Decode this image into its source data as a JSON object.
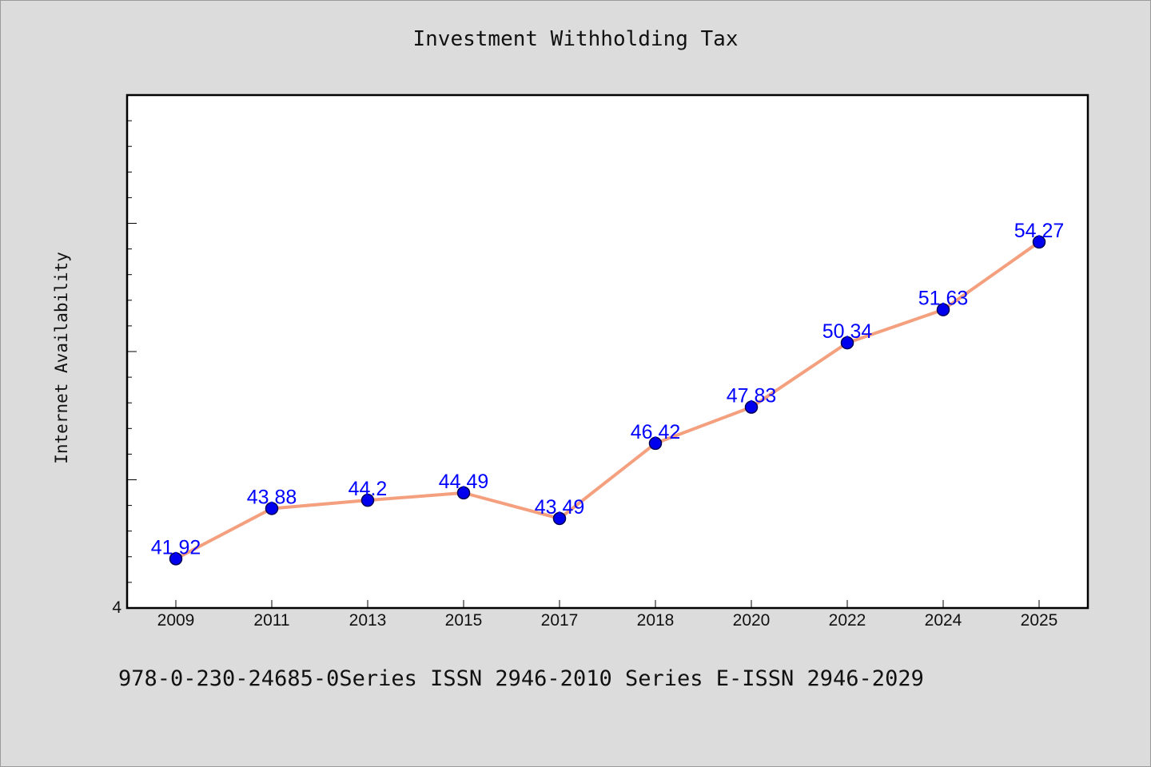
{
  "chart_data": {
    "type": "line",
    "title": "Investment Withholding Tax",
    "ylabel": "Internet Availability",
    "xlabel": "",
    "y_tick_labels": [
      "4"
    ],
    "categories": [
      "2009",
      "2011",
      "2013",
      "2015",
      "2017",
      "2018",
      "2020",
      "2022",
      "2024",
      "2025"
    ],
    "series": [
      {
        "values": [
          41.92,
          43.88,
          44.2,
          44.49,
          43.49,
          46.42,
          47.83,
          50.34,
          51.63,
          54.27
        ],
        "labels": [
          "41.92",
          "43.88",
          "44.2",
          "44.49",
          "43.49",
          "46.42",
          "47.83",
          "50.34",
          "51.63",
          "54.27"
        ]
      }
    ],
    "ylim": [
      40,
      60
    ],
    "grid": false,
    "legend": "none",
    "colors": {
      "line": "#f4a07e",
      "marker": "#0000ee",
      "marker_edge": "#000055",
      "data_label": "#0000ff",
      "plot_background": "#ffffff",
      "figure_background": "#dcdcdc"
    }
  },
  "footer": {
    "text": "978-0-230-24685-0Series ISSN 2946-2010 Series E-ISSN 2946-2029"
  }
}
